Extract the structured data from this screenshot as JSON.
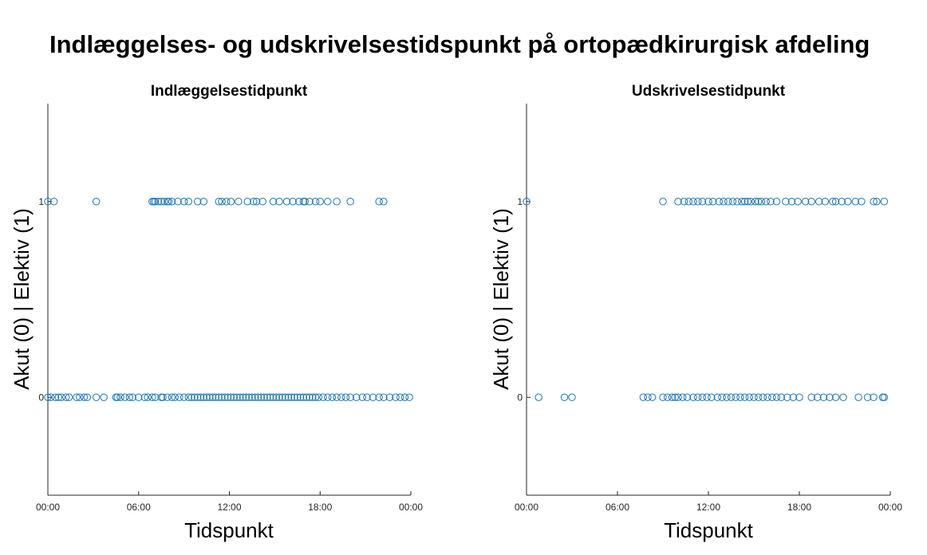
{
  "title": "Indlæggelses- og udskrivelsestidspunkt på ortopædkirurgisk afdeling",
  "marker_color": "#1f77b4",
  "chart_data": [
    {
      "type": "scatter",
      "title": "Indlæggelsestidpunkt",
      "xlabel": "Tidspunkt",
      "ylabel": "Akut (0) | Elektiv (1)",
      "x_unit": "hours",
      "xlim": [
        0,
        24
      ],
      "ylim": [
        -0.5,
        1.5
      ],
      "x_ticks": [
        "00:00",
        "06:00",
        "12:00",
        "18:00",
        "00:00"
      ],
      "y_ticks": [
        "0",
        "1"
      ],
      "grid": false,
      "series": [
        {
          "y": 1,
          "x": [
            0.0,
            0.4,
            3.2,
            6.9,
            7.0,
            7.1,
            7.3,
            7.5,
            7.7,
            7.9,
            8.0,
            8.2,
            8.6,
            9.0,
            9.3,
            9.9,
            10.3,
            11.3,
            11.5,
            11.8,
            12.1,
            12.6,
            13.2,
            13.6,
            13.8,
            14.2,
            14.9,
            15.3,
            15.8,
            16.2,
            16.6,
            16.9,
            17.0,
            17.3,
            17.7,
            18.0,
            18.5,
            19.1,
            20.0,
            21.9,
            22.2
          ]
        },
        {
          "y": 0,
          "x": [
            0.0,
            0.2,
            0.5,
            0.7,
            0.9,
            1.2,
            1.4,
            1.9,
            2.1,
            2.4,
            2.6,
            3.2,
            3.7,
            4.5,
            4.6,
            4.8,
            5.1,
            5.4,
            5.6,
            6.0,
            6.4,
            6.6,
            6.9,
            7.1,
            7.5,
            7.6,
            7.9,
            8.2,
            8.4,
            8.7,
            9.0,
            9.3,
            9.5,
            9.7,
            9.9,
            10.1,
            10.3,
            10.5,
            10.7,
            10.9,
            11.1,
            11.3,
            11.5,
            11.7,
            11.9,
            12.1,
            12.3,
            12.5,
            12.7,
            12.9,
            13.1,
            13.3,
            13.5,
            13.7,
            13.9,
            14.1,
            14.3,
            14.5,
            14.7,
            14.9,
            15.1,
            15.3,
            15.5,
            15.7,
            15.9,
            16.1,
            16.3,
            16.5,
            16.7,
            16.9,
            17.1,
            17.3,
            17.5,
            17.7,
            17.9,
            18.2,
            18.5,
            18.8,
            19.1,
            19.4,
            19.7,
            20.0,
            20.4,
            20.8,
            21.1,
            21.5,
            21.9,
            22.2,
            22.6,
            23.0,
            23.3,
            23.6,
            23.9
          ]
        }
      ]
    },
    {
      "type": "scatter",
      "title": "Udskrivelsestidpunkt",
      "xlabel": "Tidspunkt",
      "ylabel": "Akut (0) | Elektiv (1)",
      "x_unit": "hours",
      "xlim": [
        0,
        24
      ],
      "ylim": [
        -0.5,
        1.5
      ],
      "x_ticks": [
        "00:00",
        "06:00",
        "12:00",
        "18:00",
        "00:00"
      ],
      "y_ticks": [
        "0",
        "1"
      ],
      "grid": false,
      "series": [
        {
          "y": 1,
          "x": [
            0.0,
            9.0,
            10.0,
            10.4,
            10.7,
            11.0,
            11.3,
            11.6,
            12.0,
            12.3,
            12.7,
            13.0,
            13.3,
            13.6,
            13.9,
            14.2,
            14.4,
            14.6,
            14.8,
            15.1,
            15.3,
            15.5,
            15.8,
            16.1,
            16.5,
            17.1,
            17.5,
            17.9,
            18.4,
            18.8,
            19.3,
            19.7,
            20.2,
            20.4,
            20.8,
            21.2,
            21.7,
            22.1,
            22.9,
            23.1,
            23.6
          ]
        },
        {
          "y": 0,
          "x": [
            0.8,
            2.5,
            3.0,
            7.7,
            8.0,
            8.3,
            9.0,
            9.3,
            9.6,
            9.8,
            10.0,
            10.3,
            10.6,
            11.0,
            11.3,
            11.6,
            11.9,
            12.2,
            12.6,
            12.9,
            13.2,
            13.5,
            13.8,
            14.1,
            14.4,
            14.7,
            15.0,
            15.3,
            15.6,
            15.9,
            16.2,
            16.5,
            16.8,
            17.2,
            17.6,
            18.0,
            18.8,
            19.2,
            19.6,
            20.0,
            20.4,
            20.9,
            21.9,
            22.5,
            22.9,
            23.5,
            23.6
          ]
        }
      ]
    }
  ]
}
